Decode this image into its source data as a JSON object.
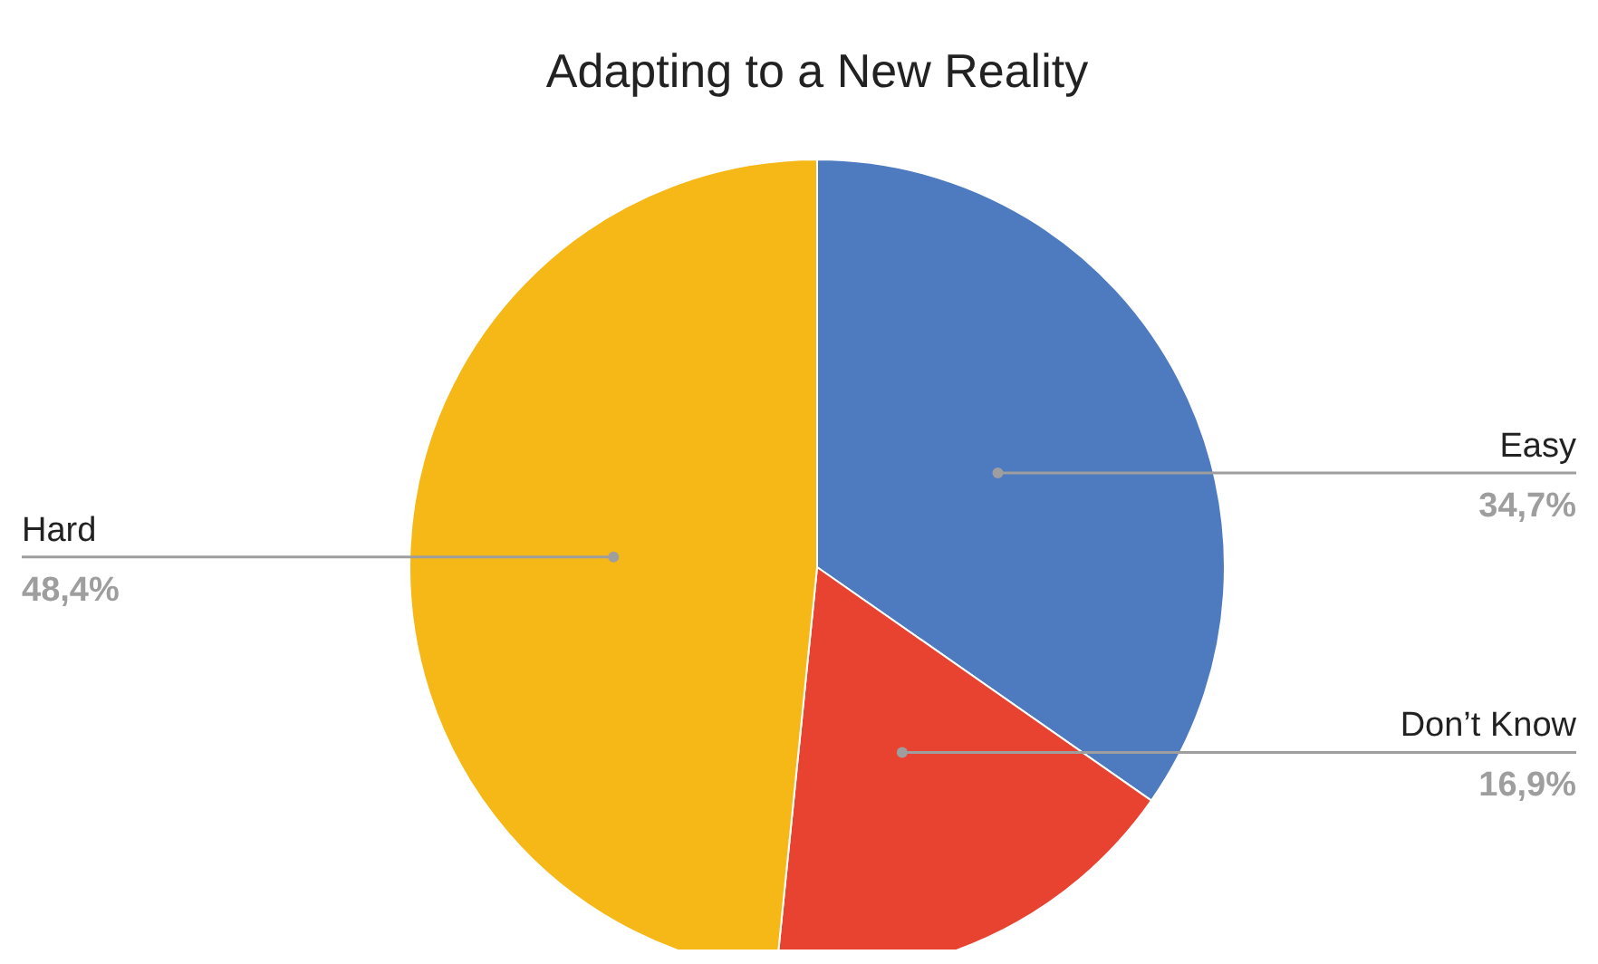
{
  "chart_data": {
    "type": "pie",
    "title": "Adapting to a New Reality",
    "categories": [
      "Easy",
      "Don’t Know",
      "Hard"
    ],
    "values": [
      34.7,
      16.9,
      48.4
    ],
    "colors": [
      "#4e7bc0",
      "#e84331",
      "#f6b817"
    ],
    "value_labels": [
      "34,7%",
      "16,9%",
      "48,4%"
    ]
  }
}
